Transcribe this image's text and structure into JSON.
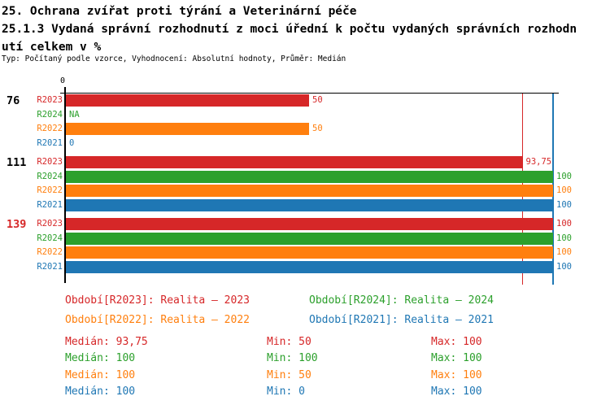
{
  "title": {
    "line1": "25. Ochrana zvířat proti týrání a Veterinární péče",
    "line2": "25.1.3 Vydaná správní rozhodnutí z moci úřední k počtu vydaných správních rozhodnutí celkem v %",
    "meta": "Typ: Počítaný podle vzorce, Vyhodnocení: Absolutní hodnoty, Průměr: Medián"
  },
  "colors": {
    "R2023": "#d62728",
    "R2024": "#2ca02c",
    "R2022": "#ff7f0e",
    "R2021": "#1f77b4",
    "axis": "#000000"
  },
  "chart_data": {
    "type": "bar",
    "orientation": "horizontal",
    "xlim": [
      0,
      100
    ],
    "x_tick_labels": [
      "0"
    ],
    "series_names": [
      "R2023",
      "R2024",
      "R2022",
      "R2021"
    ],
    "groups": [
      {
        "label": "76",
        "label_color": "#000000",
        "rows": [
          {
            "series": "R2023",
            "value": 50,
            "display": "50"
          },
          {
            "series": "R2024",
            "value": null,
            "display": "NA"
          },
          {
            "series": "R2022",
            "value": 50,
            "display": "50"
          },
          {
            "series": "R2021",
            "value": 0,
            "display": "0"
          }
        ]
      },
      {
        "label": "111",
        "label_color": "#000000",
        "rows": [
          {
            "series": "R2023",
            "value": 93.75,
            "display": "93,75"
          },
          {
            "series": "R2024",
            "value": 100,
            "display": "100"
          },
          {
            "series": "R2022",
            "value": 100,
            "display": "100"
          },
          {
            "series": "R2021",
            "value": 100,
            "display": "100"
          }
        ]
      },
      {
        "label": "139",
        "label_color": "#d62728",
        "rows": [
          {
            "series": "R2023",
            "value": 100,
            "display": "100"
          },
          {
            "series": "R2024",
            "value": 100,
            "display": "100"
          },
          {
            "series": "R2022",
            "value": 100,
            "display": "100"
          },
          {
            "series": "R2021",
            "value": 100,
            "display": "100"
          }
        ]
      }
    ],
    "median_lines": [
      {
        "series": "R2023",
        "value": 93.75
      },
      {
        "series": "R2021",
        "value": 100
      }
    ],
    "series_stats": [
      {
        "series": "R2023",
        "median": 93.75,
        "min": 50,
        "max": 100
      },
      {
        "series": "R2024",
        "median": 100,
        "min": 100,
        "max": 100
      },
      {
        "series": "R2022",
        "median": 100,
        "min": 50,
        "max": 100
      },
      {
        "series": "R2021",
        "median": 100,
        "min": 0,
        "max": 100
      }
    ]
  },
  "legend": [
    {
      "series": "R2023",
      "label": "Období[R2023]: Realita – 2023"
    },
    {
      "series": "R2024",
      "label": "Období[R2024]: Realita – 2024"
    },
    {
      "series": "R2022",
      "label": "Období[R2022]: Realita – 2022"
    },
    {
      "series": "R2021",
      "label": "Období[R2021]: Realita – 2021"
    }
  ],
  "stats": [
    {
      "series": "R2023",
      "median_text": "Medián: 93,75",
      "min_text": "Min: 50",
      "max_text": "Max: 100"
    },
    {
      "series": "R2024",
      "median_text": "Medián: 100",
      "min_text": "Min: 100",
      "max_text": "Max: 100"
    },
    {
      "series": "R2022",
      "median_text": "Medián: 100",
      "min_text": "Min: 50",
      "max_text": "Max: 100"
    },
    {
      "series": "R2021",
      "median_text": "Medián: 100",
      "min_text": "Min: 0",
      "max_text": "Max: 100"
    }
  ]
}
